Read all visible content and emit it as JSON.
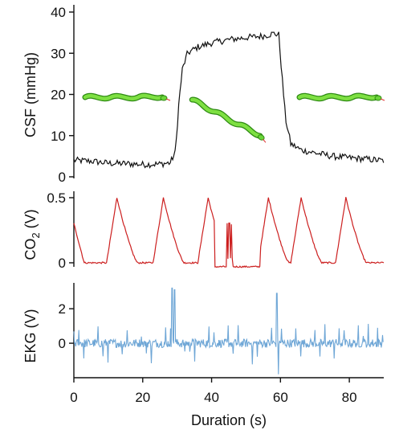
{
  "chart_data": [
    {
      "type": "line",
      "ylabel": "CSF (mmHg)",
      "ylim": [
        0,
        40
      ],
      "yticks": [
        0,
        10,
        20,
        30,
        40
      ],
      "color": "#111111",
      "x_range": [
        0,
        90
      ],
      "points": [
        [
          0,
          4.0
        ],
        [
          5,
          3.8
        ],
        [
          10,
          3.3
        ],
        [
          15,
          3.2
        ],
        [
          20,
          3.0
        ],
        [
          25,
          3.1
        ],
        [
          28,
          3.4
        ],
        [
          29.5,
          6
        ],
        [
          30.5,
          18
        ],
        [
          31.5,
          26
        ],
        [
          33,
          30
        ],
        [
          36,
          31.5
        ],
        [
          40,
          32.5
        ],
        [
          45,
          33.3
        ],
        [
          50,
          33.8
        ],
        [
          55,
          34.2
        ],
        [
          58,
          34.8
        ],
        [
          59.5,
          34.5
        ],
        [
          60.5,
          24
        ],
        [
          61.5,
          14
        ],
        [
          63,
          8
        ],
        [
          66,
          6.5
        ],
        [
          70,
          5.8
        ],
        [
          75,
          5.0
        ],
        [
          80,
          4.6
        ],
        [
          85,
          4.3
        ],
        [
          90,
          3.9
        ]
      ],
      "noise": 0.8,
      "annotations": [
        "snake-icon-left",
        "snake-icon-middle",
        "snake-icon-right"
      ]
    },
    {
      "type": "line",
      "ylabel": "CO2 (V)",
      "ylabel_main": "CO",
      "ylabel_sub": "2",
      "ylabel_unit": " (V)",
      "ylim": [
        0,
        0.5
      ],
      "yticks": [
        0,
        0.5
      ],
      "ytick_labels": [
        "0",
        "0.5"
      ],
      "color": "#cc1f1f",
      "x_range": [
        0,
        90
      ],
      "peaks": [
        12.5,
        26,
        39,
        56.5,
        66,
        79
      ],
      "flat_segment": [
        41,
        54
      ],
      "spike_segment": [
        44.5,
        46
      ]
    },
    {
      "type": "line",
      "ylabel": "EKG (V)",
      "ylim": [
        -2,
        3.5
      ],
      "yticks": [
        0,
        2
      ],
      "ytick_labels": [
        "0",
        "2"
      ],
      "xlabel": "Duration (s)",
      "xlim": [
        0,
        90
      ],
      "xticks": [
        0,
        20,
        40,
        60,
        80
      ],
      "color": "#6ea6d6",
      "x_range": [
        0,
        90
      ],
      "beat_interval": 1.4,
      "spikes": [
        [
          28.5,
          3.2
        ],
        [
          29.3,
          3.1
        ],
        [
          59,
          2.9
        ],
        [
          59.4,
          -1.8
        ]
      ]
    }
  ]
}
